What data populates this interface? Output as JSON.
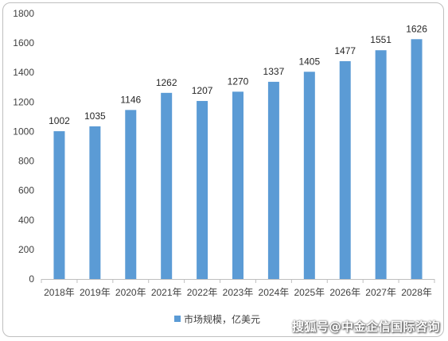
{
  "chart_data": {
    "type": "bar",
    "categories": [
      "2018年",
      "2019年",
      "2020年",
      "2021年",
      "2022年",
      "2023年",
      "2024年",
      "2025年",
      "2026年",
      "2027年",
      "2028年"
    ],
    "series": [
      {
        "name": "市场规模，亿美元",
        "values": [
          1002,
          1035,
          1146,
          1262,
          1207,
          1270,
          1337,
          1405,
          1477,
          1551,
          1626
        ]
      }
    ],
    "y_ticks": [
      0,
      200,
      400,
      600,
      800,
      1000,
      1200,
      1400,
      1600,
      1800
    ],
    "ylim": [
      0,
      1800
    ],
    "grid": false,
    "legend_position": "bottom-left",
    "bar_color": "#5b9bd5"
  },
  "watermark": "搜狐号@中金企信国际咨询"
}
